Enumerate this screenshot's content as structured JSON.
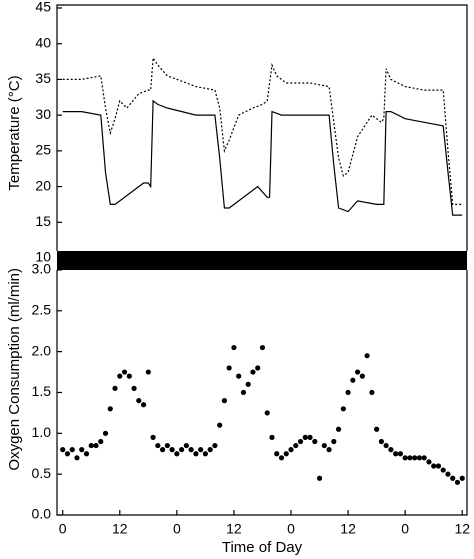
{
  "chart_data": [
    {
      "type": "line",
      "ylabel": "Temperature  (°C)",
      "xlim": [
        -1.2,
        85
      ],
      "ylim": [
        10,
        45
      ],
      "yticks": [
        10,
        15,
        20,
        25,
        30,
        35,
        40,
        45
      ],
      "series": [
        {
          "style": "dashed",
          "color": "#000000",
          "x": [
            0,
            4,
            8,
            9,
            10,
            11,
            12,
            13.5,
            16,
            18,
            18.5,
            19,
            20,
            22,
            24,
            28,
            32,
            33,
            34,
            35,
            37,
            40,
            42,
            43,
            44,
            45,
            47,
            52,
            56,
            57,
            58,
            59,
            60,
            62,
            65,
            67,
            67.5,
            68,
            69,
            72,
            76,
            80,
            81,
            82,
            84
          ],
          "values": [
            35,
            35,
            35.5,
            31,
            27.5,
            29.5,
            32,
            31,
            33,
            33.5,
            33.5,
            38,
            37,
            35.5,
            35,
            34,
            33.5,
            31,
            25,
            26.5,
            30,
            31,
            31.5,
            32,
            37,
            35.5,
            34.5,
            34.5,
            34,
            29,
            24,
            21.5,
            22,
            27,
            30,
            29,
            29.5,
            36.5,
            35,
            34,
            33.5,
            33.5,
            25,
            17.5,
            17.5
          ]
        },
        {
          "style": "solid",
          "color": "#000000",
          "x": [
            0,
            4,
            8,
            9,
            10,
            11,
            12,
            15,
            17,
            18,
            18.5,
            19,
            20,
            22,
            28,
            32,
            33,
            34,
            35,
            37,
            41,
            43,
            43.5,
            44,
            46,
            52,
            56,
            57,
            58,
            60,
            62,
            66,
            67.5,
            68,
            69,
            72,
            76,
            80,
            81,
            82,
            84
          ],
          "values": [
            30.5,
            30.5,
            30,
            22,
            17.5,
            17.5,
            18,
            19.5,
            20.5,
            20.5,
            20,
            32,
            31.5,
            31,
            30,
            30,
            24,
            17,
            17,
            18,
            20,
            18.5,
            18.5,
            30.5,
            30,
            30,
            30,
            23,
            17,
            16.5,
            18,
            17.5,
            17.5,
            30.5,
            30.5,
            29.5,
            29,
            28.5,
            22,
            16,
            16
          ]
        }
      ]
    },
    {
      "type": "scatter",
      "ylabel": "Oxygen Consumption  (ml/min)",
      "xlabel": "Time of Day",
      "color": "#000000",
      "xlim": [
        -1.2,
        85
      ],
      "ylim": [
        0,
        3.2
      ],
      "yticks": [
        {
          "value": 0,
          "label": "0.0"
        },
        0.5,
        {
          "value": 1,
          "label": "1.0"
        },
        1.5,
        {
          "value": 2,
          "label": "2.0"
        },
        2.5,
        {
          "value": 3,
          "label": "3.0"
        }
      ],
      "xticks": [
        0,
        12,
        {
          "value": 24,
          "label": "0"
        },
        {
          "value": 36,
          "label": "12"
        },
        {
          "value": 48,
          "label": "0"
        },
        {
          "value": 60,
          "label": "12"
        },
        {
          "value": 72,
          "label": "0"
        },
        {
          "value": 84,
          "label": "12"
        }
      ],
      "x": [
        0,
        1,
        2,
        3,
        4,
        5,
        6,
        7,
        8,
        9,
        10,
        11,
        12,
        13,
        14,
        15,
        16,
        17,
        18,
        19,
        20,
        21,
        22,
        23,
        24,
        25,
        26,
        27,
        28,
        29,
        30,
        31,
        32,
        33,
        34,
        35,
        36,
        37,
        38,
        39,
        40,
        41,
        42,
        43,
        44,
        45,
        46,
        47,
        48,
        49,
        50,
        51,
        52,
        53,
        54,
        55,
        56,
        57,
        58,
        59,
        60,
        61,
        62,
        63,
        64,
        65,
        66,
        67,
        68,
        69,
        70,
        71,
        72,
        73,
        74,
        75,
        76,
        77,
        78,
        79,
        80,
        81,
        82,
        83,
        84
      ],
      "values": [
        0.8,
        0.75,
        0.8,
        0.7,
        0.8,
        0.75,
        0.85,
        0.85,
        0.9,
        1.0,
        1.3,
        1.55,
        1.7,
        1.75,
        1.7,
        1.55,
        1.4,
        1.35,
        1.75,
        0.95,
        0.85,
        0.8,
        0.85,
        0.8,
        0.75,
        0.8,
        0.85,
        0.8,
        0.75,
        0.8,
        0.75,
        0.8,
        0.85,
        1.1,
        1.4,
        1.8,
        2.05,
        1.7,
        1.5,
        1.6,
        1.75,
        1.8,
        2.05,
        1.25,
        0.95,
        0.75,
        0.7,
        0.75,
        0.8,
        0.85,
        0.9,
        0.95,
        0.95,
        0.9,
        0.45,
        0.85,
        0.8,
        0.9,
        1.05,
        1.3,
        1.5,
        1.65,
        1.75,
        1.7,
        1.95,
        1.5,
        1.05,
        0.9,
        0.85,
        0.8,
        0.75,
        0.75,
        0.7,
        0.7,
        0.7,
        0.7,
        0.7,
        0.65,
        0.6,
        0.6,
        0.55,
        0.5,
        0.45,
        0.4,
        0.45
      ]
    }
  ]
}
